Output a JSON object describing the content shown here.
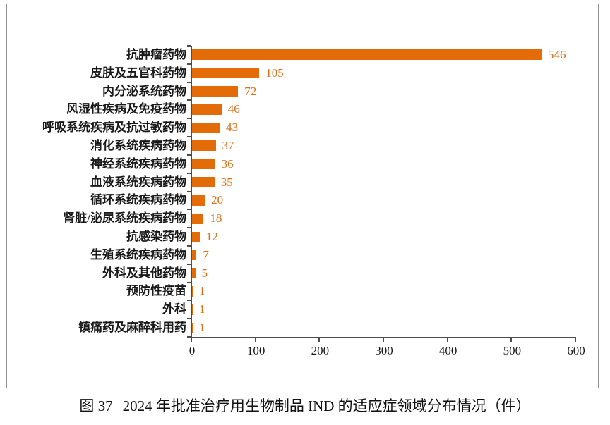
{
  "chart_data": {
    "type": "bar",
    "orientation": "horizontal",
    "title": "",
    "xlabel": "",
    "ylabel": "",
    "categories": [
      "抗肿瘤药物",
      "皮肤及五官科药物",
      "内分泌系统药物",
      "风湿性疾病及免疫药物",
      "呼吸系统疾病及抗过敏药物",
      "消化系统疾病药物",
      "神经系统疾病药物",
      "血液系统疾病药物",
      "循环系统疾病药物",
      "肾脏/泌尿系统疾病药物",
      "抗感染药物",
      "生殖系统疾病药物",
      "外科及其他药物",
      "预防性疫苗",
      "外科",
      "镇痛药及麻醉科用药"
    ],
    "values": [
      546,
      105,
      72,
      46,
      43,
      37,
      36,
      35,
      20,
      18,
      12,
      7,
      5,
      1,
      1,
      1
    ],
    "xlim": [
      0,
      600
    ],
    "x_ticks": [
      0,
      100,
      200,
      300,
      400,
      500,
      600
    ],
    "grid": "off",
    "legend": "none",
    "bar_color": "#E36C09",
    "value_label_color": "#DD6E12",
    "axis_color": "#4d4d4d"
  },
  "caption": {
    "figure_label": "图 37",
    "title": "2024 年批准治疗用生物制品 IND 的适应症领域分布情况（件）"
  }
}
